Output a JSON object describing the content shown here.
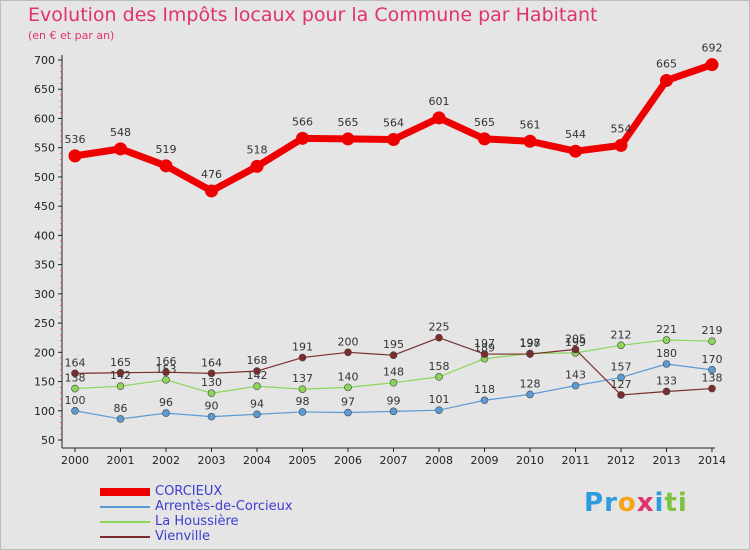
{
  "header": {
    "title": "Evolution des Impôts locaux pour la Commune par Habitant",
    "subtitle": "(en € et par an)"
  },
  "logo": {
    "text": "Proxiti",
    "colors": [
      "#2e9be0",
      "#f7a21b",
      "#7fc241",
      "#e0336b"
    ]
  },
  "chart_data": {
    "type": "line",
    "x": [
      "2000",
      "2001",
      "2002",
      "2003",
      "2004",
      "2005",
      "2006",
      "2007",
      "2008",
      "2009",
      "2010",
      "2011",
      "2012",
      "2013",
      "2014"
    ],
    "yticks": [
      50,
      100,
      150,
      200,
      250,
      300,
      350,
      400,
      450,
      500,
      550,
      600,
      650,
      700
    ],
    "ylim": [
      50,
      700
    ],
    "grid": false,
    "legend_position": "bottom-left",
    "series": [
      {
        "name": "CORCIEUX",
        "color": "#ee0000",
        "values": [
          536,
          548,
          519,
          476,
          518,
          566,
          565,
          564,
          601,
          565,
          561,
          544,
          554,
          665,
          692
        ]
      },
      {
        "name": "Arrentès-de-Corcieux",
        "color": "#5b9bd5",
        "values": [
          100,
          86,
          96,
          90,
          94,
          98,
          97,
          99,
          101,
          118,
          128,
          143,
          157,
          180,
          170
        ]
      },
      {
        "name": "La Houssière",
        "color": "#8cd65a",
        "values": [
          138,
          142,
          153,
          130,
          142,
          137,
          140,
          148,
          158,
          189,
          198,
          199,
          212,
          221,
          219
        ]
      },
      {
        "name": "Vienville",
        "color": "#7b2d2d",
        "values": [
          164,
          165,
          166,
          164,
          168,
          191,
          200,
          195,
          225,
          197,
          197,
          205,
          127,
          133,
          138
        ]
      }
    ]
  }
}
